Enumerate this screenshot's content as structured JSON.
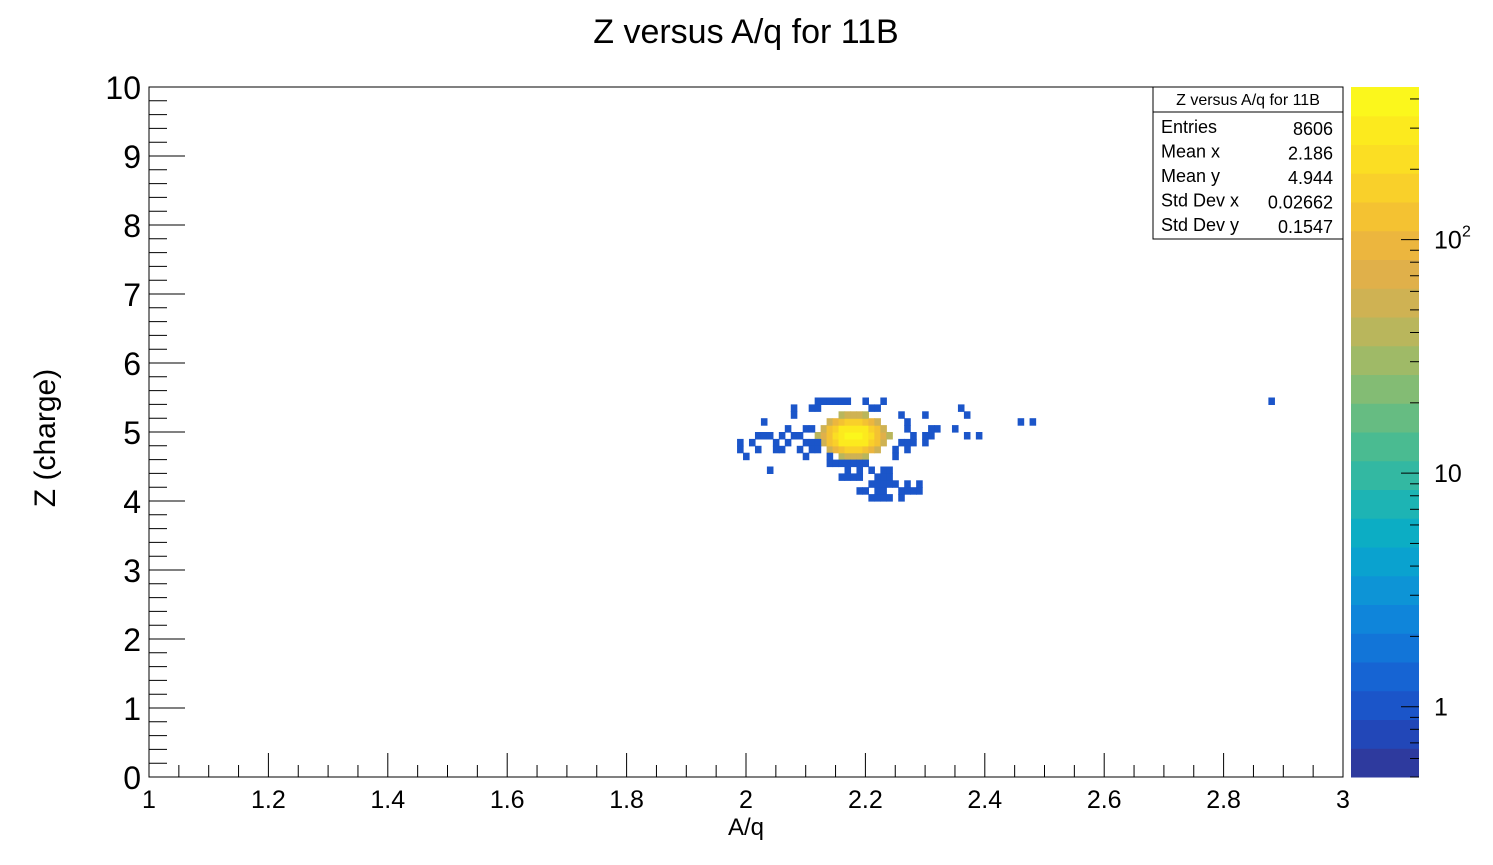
{
  "chart_data": {
    "type": "heatmap",
    "title": "Z versus A/q for 11B",
    "xlabel": "A/q",
    "ylabel": "Z (charge)",
    "xlim": [
      1,
      3
    ],
    "ylim": [
      0,
      10
    ],
    "grid": false,
    "x_ticks": [
      "1",
      "1.2",
      "1.4",
      "1.6",
      "1.8",
      "2",
      "2.2",
      "2.4",
      "2.6",
      "2.8",
      "3"
    ],
    "y_ticks": [
      "0",
      "1",
      "2",
      "3",
      "4",
      "5",
      "6",
      "7",
      "8",
      "9",
      "10"
    ],
    "bin_width_x": 0.01,
    "bin_width_y": 0.1,
    "z_scale": "log",
    "z_range": [
      0.5,
      450
    ],
    "z_ticks": [
      {
        "value": 1,
        "label": "1"
      },
      {
        "value": 10,
        "label": "10"
      },
      {
        "value": 100,
        "label": "10",
        "sup": "2"
      }
    ],
    "palette": [
      "#2e3a9e",
      "#2247b8",
      "#1b55c9",
      "#1664d3",
      "#1275d8",
      "#0f85da",
      "#0d94d6",
      "#0aa2cf",
      "#0cadc4",
      "#1db4b4",
      "#33b8a2",
      "#4abb91",
      "#66bc82",
      "#83bc74",
      "#9fba67",
      "#b9b65c",
      "#cfb253",
      "#e0b04a",
      "#ecb63e",
      "#f4c232",
      "#f9d02a",
      "#fbde23",
      "#fcea1e",
      "#fbf71c"
    ],
    "stats": {
      "title": "Z versus A/q for 11B",
      "rows": [
        {
          "label": "Entries",
          "value": "8606"
        },
        {
          "label": "Mean x",
          "value": "2.186"
        },
        {
          "label": "Mean y",
          "value": "4.944"
        },
        {
          "label": "Std Dev x",
          "value": "0.02662"
        },
        {
          "label": "Std Dev y",
          "value": "0.1547"
        }
      ]
    },
    "blob": {
      "center_x": 2.18,
      "center_y": 4.95,
      "sigma_x": 0.027,
      "sigma_y": 0.15,
      "peak": 420
    },
    "scattered_bins": [
      [
        2.12,
        5.45
      ],
      [
        2.13,
        5.45
      ],
      [
        2.14,
        5.45
      ],
      [
        2.15,
        5.45
      ],
      [
        2.16,
        5.45
      ],
      [
        2.17,
        5.45
      ],
      [
        2.2,
        5.45
      ],
      [
        2.23,
        5.45
      ],
      [
        2.08,
        5.35
      ],
      [
        2.11,
        5.35
      ],
      [
        2.12,
        5.35
      ],
      [
        2.21,
        5.35
      ],
      [
        2.22,
        5.35
      ],
      [
        2.36,
        5.35
      ],
      [
        2.08,
        5.25
      ],
      [
        2.26,
        5.25
      ],
      [
        2.3,
        5.25
      ],
      [
        2.37,
        5.25
      ],
      [
        2.03,
        5.15
      ],
      [
        2.27,
        5.15
      ],
      [
        2.46,
        5.15
      ],
      [
        2.48,
        5.15
      ],
      [
        2.07,
        5.05
      ],
      [
        2.1,
        5.05
      ],
      [
        2.11,
        5.05
      ],
      [
        2.27,
        5.05
      ],
      [
        2.31,
        5.05
      ],
      [
        2.32,
        5.05
      ],
      [
        2.35,
        5.05
      ],
      [
        2.02,
        4.95
      ],
      [
        2.03,
        4.95
      ],
      [
        2.04,
        4.95
      ],
      [
        2.06,
        4.95
      ],
      [
        2.08,
        4.95
      ],
      [
        2.09,
        4.95
      ],
      [
        2.28,
        4.95
      ],
      [
        2.3,
        4.95
      ],
      [
        2.31,
        4.95
      ],
      [
        2.37,
        4.95
      ],
      [
        2.39,
        4.95
      ],
      [
        1.99,
        4.85
      ],
      [
        2.01,
        4.85
      ],
      [
        2.05,
        4.85
      ],
      [
        2.07,
        4.85
      ],
      [
        2.1,
        4.85
      ],
      [
        2.11,
        4.85
      ],
      [
        2.12,
        4.85
      ],
      [
        2.26,
        4.85
      ],
      [
        2.27,
        4.85
      ],
      [
        2.28,
        4.85
      ],
      [
        2.3,
        4.85
      ],
      [
        1.99,
        4.75
      ],
      [
        2.02,
        4.75
      ],
      [
        2.05,
        4.75
      ],
      [
        2.06,
        4.75
      ],
      [
        2.09,
        4.75
      ],
      [
        2.11,
        4.75
      ],
      [
        2.12,
        4.75
      ],
      [
        2.25,
        4.75
      ],
      [
        2.27,
        4.75
      ],
      [
        2.0,
        4.65
      ],
      [
        2.1,
        4.65
      ],
      [
        2.14,
        4.65
      ],
      [
        2.25,
        4.65
      ],
      [
        2.14,
        4.55
      ],
      [
        2.15,
        4.55
      ],
      [
        2.16,
        4.55
      ],
      [
        2.17,
        4.55
      ],
      [
        2.18,
        4.55
      ],
      [
        2.19,
        4.55
      ],
      [
        2.2,
        4.55
      ],
      [
        2.04,
        4.45
      ],
      [
        2.17,
        4.45
      ],
      [
        2.19,
        4.45
      ],
      [
        2.21,
        4.45
      ],
      [
        2.23,
        4.45
      ],
      [
        2.24,
        4.45
      ],
      [
        2.16,
        4.35
      ],
      [
        2.17,
        4.35
      ],
      [
        2.18,
        4.35
      ],
      [
        2.19,
        4.35
      ],
      [
        2.22,
        4.35
      ],
      [
        2.23,
        4.35
      ],
      [
        2.24,
        4.35
      ],
      [
        2.21,
        4.25
      ],
      [
        2.22,
        4.25
      ],
      [
        2.23,
        4.25
      ],
      [
        2.24,
        4.25
      ],
      [
        2.25,
        4.25
      ],
      [
        2.27,
        4.25
      ],
      [
        2.29,
        4.25
      ],
      [
        2.19,
        4.15
      ],
      [
        2.2,
        4.15
      ],
      [
        2.22,
        4.15
      ],
      [
        2.23,
        4.15
      ],
      [
        2.26,
        4.15
      ],
      [
        2.27,
        4.15
      ],
      [
        2.28,
        4.15
      ],
      [
        2.29,
        4.15
      ],
      [
        2.21,
        4.05
      ],
      [
        2.22,
        4.05
      ],
      [
        2.23,
        4.05
      ],
      [
        2.24,
        4.05
      ],
      [
        2.26,
        4.05
      ],
      [
        2.88,
        5.45
      ]
    ]
  }
}
